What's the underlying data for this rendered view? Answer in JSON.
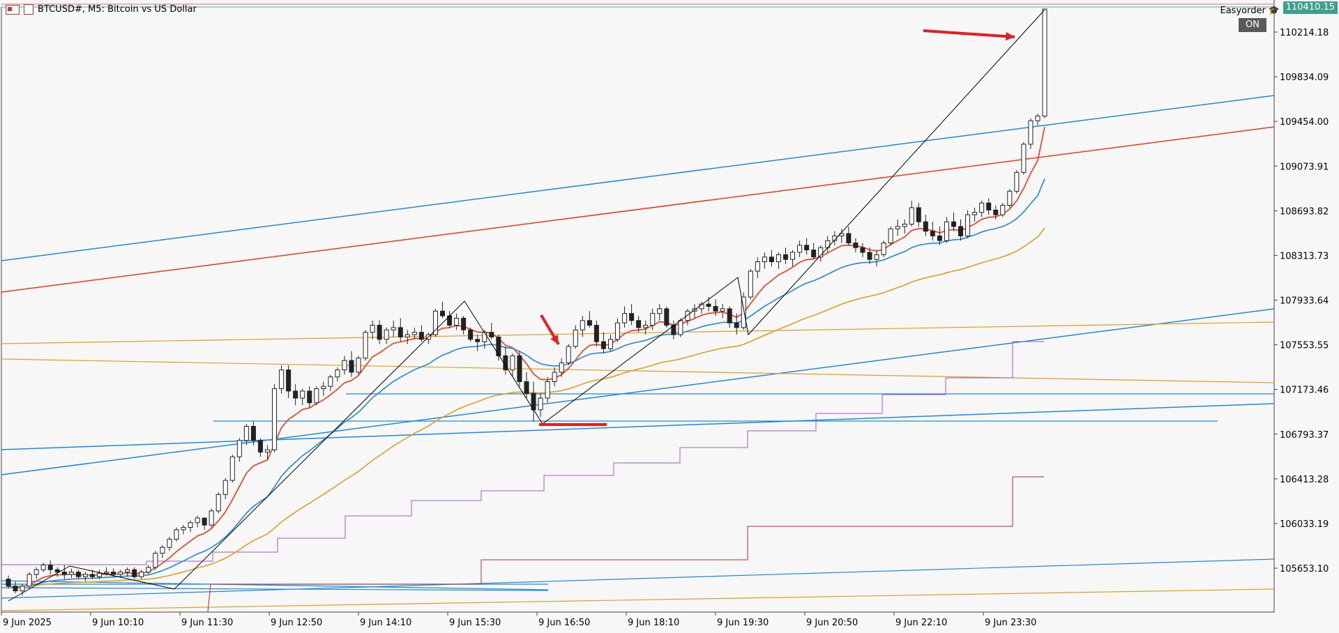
{
  "header": {
    "symbol_title": "BTCUSD#, M5:  Bitcoin vs US Dollar",
    "ea_name": "Easyorder",
    "on_label": "ON",
    "current_price": "110410.15"
  },
  "colors": {
    "background": "#f7f7f7",
    "ema_fast": "#f03c14",
    "ema_mid": "#1e88e5",
    "ema_slow": "#e0a020",
    "trend_blue": "#1e88e5",
    "trend_red": "#f03c14",
    "step_purple": "#9b59d0",
    "step_darkred": "#b03030",
    "arrow": "#e61e1e",
    "price_badge": "#3f9f8f"
  },
  "chart_data": {
    "type": "candlestick",
    "title": "",
    "ylim": [
      105400,
      110500
    ],
    "y_ticks": [
      "110214.18",
      "109834.09",
      "109454.00",
      "109073.91",
      "108693.82",
      "108313.73",
      "107933.64",
      "107553.55",
      "107173.46",
      "106793.37",
      "106413.28",
      "106033.19",
      "105653.10"
    ],
    "x_ticks": [
      "9 Jun 2025",
      "9 Jun 10:10",
      "9 Jun 11:30",
      "9 Jun 12:50",
      "9 Jun 14:10",
      "9 Jun 15:30",
      "9 Jun 16:50",
      "9 Jun 18:10",
      "9 Jun 19:30",
      "9 Jun 20:50",
      "9 Jun 22:10",
      "9 Jun 23:30"
    ],
    "candles": [
      [
        105560,
        105590,
        105480,
        105500
      ],
      [
        105500,
        105540,
        105440,
        105460
      ],
      [
        105460,
        105520,
        105420,
        105500
      ],
      [
        105500,
        105620,
        105480,
        105600
      ],
      [
        105600,
        105660,
        105560,
        105640
      ],
      [
        105640,
        105700,
        105620,
        105680
      ],
      [
        105680,
        105720,
        105600,
        105640
      ],
      [
        105640,
        105660,
        105580,
        105620
      ],
      [
        105620,
        105680,
        105560,
        105600
      ],
      [
        105600,
        105650,
        105570,
        105620
      ],
      [
        105620,
        105640,
        105560,
        105580
      ],
      [
        105580,
        105620,
        105540,
        105600
      ],
      [
        105600,
        105640,
        105560,
        105580
      ],
      [
        105580,
        105640,
        105560,
        105610
      ],
      [
        105610,
        105660,
        105590,
        105620
      ],
      [
        105620,
        105650,
        105580,
        105600
      ],
      [
        105600,
        105640,
        105580,
        105620
      ],
      [
        105620,
        105660,
        105580,
        105640
      ],
      [
        105640,
        105660,
        105560,
        105580
      ],
      [
        105580,
        105640,
        105560,
        105620
      ],
      [
        105620,
        105680,
        105600,
        105660
      ],
      [
        105660,
        105800,
        105640,
        105780
      ],
      [
        105780,
        105850,
        105740,
        105830
      ],
      [
        105830,
        105920,
        105800,
        105900
      ],
      [
        105900,
        106000,
        105880,
        105980
      ],
      [
        105980,
        106020,
        105940,
        106000
      ],
      [
        106000,
        106060,
        105960,
        106040
      ],
      [
        106040,
        106100,
        106000,
        106080
      ],
      [
        106080,
        106080,
        105980,
        106020
      ],
      [
        106020,
        106160,
        106000,
        106140
      ],
      [
        106140,
        106300,
        106120,
        106280
      ],
      [
        106280,
        106420,
        106240,
        106400
      ],
      [
        106400,
        106620,
        106380,
        106600
      ],
      [
        106600,
        106760,
        106560,
        106740
      ],
      [
        106740,
        106880,
        106700,
        106860
      ],
      [
        106860,
        106900,
        106700,
        106740
      ],
      [
        106740,
        106760,
        106600,
        106640
      ],
      [
        106640,
        106700,
        106580,
        106660
      ],
      [
        106660,
        107220,
        106640,
        107180
      ],
      [
        107180,
        107380,
        107140,
        107340
      ],
      [
        107340,
        107380,
        107100,
        107160
      ],
      [
        107160,
        107220,
        107040,
        107100
      ],
      [
        107100,
        107180,
        107040,
        107160
      ],
      [
        107160,
        107200,
        107020,
        107060
      ],
      [
        107060,
        107200,
        107040,
        107180
      ],
      [
        107180,
        107240,
        107120,
        107200
      ],
      [
        107200,
        107300,
        107160,
        107280
      ],
      [
        107280,
        107360,
        107240,
        107340
      ],
      [
        107340,
        107460,
        107300,
        107420
      ],
      [
        107420,
        107500,
        107280,
        107320
      ],
      [
        107320,
        107460,
        107300,
        107440
      ],
      [
        107440,
        107680,
        107420,
        107660
      ],
      [
        107660,
        107760,
        107600,
        107720
      ],
      [
        107720,
        107760,
        107560,
        107600
      ],
      [
        107600,
        107700,
        107560,
        107680
      ],
      [
        107680,
        107760,
        107620,
        107700
      ],
      [
        107700,
        107780,
        107580,
        107620
      ],
      [
        107620,
        107680,
        107560,
        107640
      ],
      [
        107640,
        107700,
        107600,
        107660
      ],
      [
        107660,
        107720,
        107580,
        107600
      ],
      [
        107600,
        107660,
        107560,
        107640
      ],
      [
        107640,
        107860,
        107620,
        107840
      ],
      [
        107840,
        107920,
        107780,
        107800
      ],
      [
        107800,
        107840,
        107700,
        107720
      ],
      [
        107720,
        107820,
        107680,
        107780
      ],
      [
        107780,
        107800,
        107640,
        107680
      ],
      [
        107680,
        107700,
        107580,
        107600
      ],
      [
        107600,
        107640,
        107500,
        107580
      ],
      [
        107580,
        107680,
        107520,
        107660
      ],
      [
        107660,
        107740,
        107600,
        107620
      ],
      [
        107620,
        107640,
        107420,
        107460
      ],
      [
        107460,
        107540,
        107300,
        107340
      ],
      [
        107340,
        107480,
        107280,
        107460
      ],
      [
        107460,
        107500,
        107200,
        107240
      ],
      [
        107240,
        107320,
        107100,
        107140
      ],
      [
        107140,
        107240,
        106900,
        107000
      ],
      [
        107000,
        107140,
        106940,
        107100
      ],
      [
        107100,
        107280,
        107060,
        107240
      ],
      [
        107240,
        107360,
        107200,
        107320
      ],
      [
        107320,
        107440,
        107280,
        107400
      ],
      [
        107400,
        107560,
        107380,
        107540
      ],
      [
        107540,
        107720,
        107520,
        107680
      ],
      [
        107680,
        107800,
        107620,
        107760
      ],
      [
        107760,
        107840,
        107700,
        107720
      ],
      [
        107720,
        107760,
        107540,
        107580
      ],
      [
        107580,
        107660,
        107480,
        107520
      ],
      [
        107520,
        107640,
        107500,
        107600
      ],
      [
        107600,
        107780,
        107580,
        107740
      ],
      [
        107740,
        107880,
        107700,
        107820
      ],
      [
        107820,
        107900,
        107720,
        107760
      ],
      [
        107760,
        107800,
        107660,
        107700
      ],
      [
        107700,
        107760,
        107640,
        107720
      ],
      [
        107720,
        107860,
        107680,
        107820
      ],
      [
        107820,
        107900,
        107760,
        107860
      ],
      [
        107860,
        107880,
        107700,
        107720
      ],
      [
        107720,
        107760,
        107600,
        107640
      ],
      [
        107640,
        107780,
        107620,
        107760
      ],
      [
        107760,
        107860,
        107720,
        107840
      ],
      [
        107840,
        107900,
        107780,
        107860
      ],
      [
        107860,
        107920,
        107820,
        107900
      ],
      [
        107900,
        107960,
        107840,
        107880
      ],
      [
        107880,
        107940,
        107800,
        107840
      ],
      [
        107840,
        107900,
        107780,
        107860
      ],
      [
        107860,
        107880,
        107700,
        107740
      ],
      [
        107740,
        107820,
        107640,
        107700
      ],
      [
        107700,
        108000,
        107680,
        107960
      ],
      [
        107960,
        108200,
        107940,
        108180
      ],
      [
        108180,
        108300,
        108120,
        108260
      ],
      [
        108260,
        108340,
        108200,
        108300
      ],
      [
        108300,
        108360,
        108220,
        108260
      ],
      [
        108260,
        108340,
        108200,
        108320
      ],
      [
        108320,
        108380,
        108240,
        108280
      ],
      [
        108280,
        108360,
        108220,
        108340
      ],
      [
        108340,
        108440,
        108300,
        108400
      ],
      [
        108400,
        108460,
        108320,
        108360
      ],
      [
        108360,
        108420,
        108280,
        108300
      ],
      [
        108300,
        108400,
        108260,
        108380
      ],
      [
        108380,
        108480,
        108340,
        108440
      ],
      [
        108440,
        108520,
        108400,
        108480
      ],
      [
        108480,
        108540,
        108420,
        108500
      ],
      [
        108500,
        108560,
        108400,
        108420
      ],
      [
        108420,
        108460,
        108340,
        108380
      ],
      [
        108380,
        108420,
        108300,
        108340
      ],
      [
        108340,
        108380,
        108240,
        108280
      ],
      [
        108280,
        108360,
        108220,
        108320
      ],
      [
        108320,
        108440,
        108300,
        108420
      ],
      [
        108420,
        108560,
        108400,
        108540
      ],
      [
        108540,
        108620,
        108480,
        108560
      ],
      [
        108560,
        108620,
        108500,
        108580
      ],
      [
        108580,
        108780,
        108560,
        108720
      ],
      [
        108720,
        108760,
        108560,
        108600
      ],
      [
        108600,
        108660,
        108480,
        108520
      ],
      [
        108520,
        108600,
        108440,
        108480
      ],
      [
        108480,
        108560,
        108400,
        108440
      ],
      [
        108440,
        108640,
        108420,
        108600
      ],
      [
        108600,
        108680,
        108520,
        108560
      ],
      [
        108560,
        108620,
        108440,
        108480
      ],
      [
        108480,
        108700,
        108460,
        108660
      ],
      [
        108660,
        108720,
        108600,
        108680
      ],
      [
        108680,
        108780,
        108640,
        108760
      ],
      [
        108760,
        108800,
        108660,
        108700
      ],
      [
        108700,
        108740,
        108620,
        108660
      ],
      [
        108660,
        108760,
        108640,
        108740
      ],
      [
        108740,
        108880,
        108720,
        108860
      ],
      [
        108860,
        109040,
        108840,
        109020
      ],
      [
        109020,
        109280,
        109000,
        109260
      ],
      [
        109260,
        109480,
        109220,
        109460
      ],
      [
        109460,
        109520,
        109420,
        109500
      ],
      [
        109500,
        110410,
        109480,
        110410
      ]
    ]
  }
}
